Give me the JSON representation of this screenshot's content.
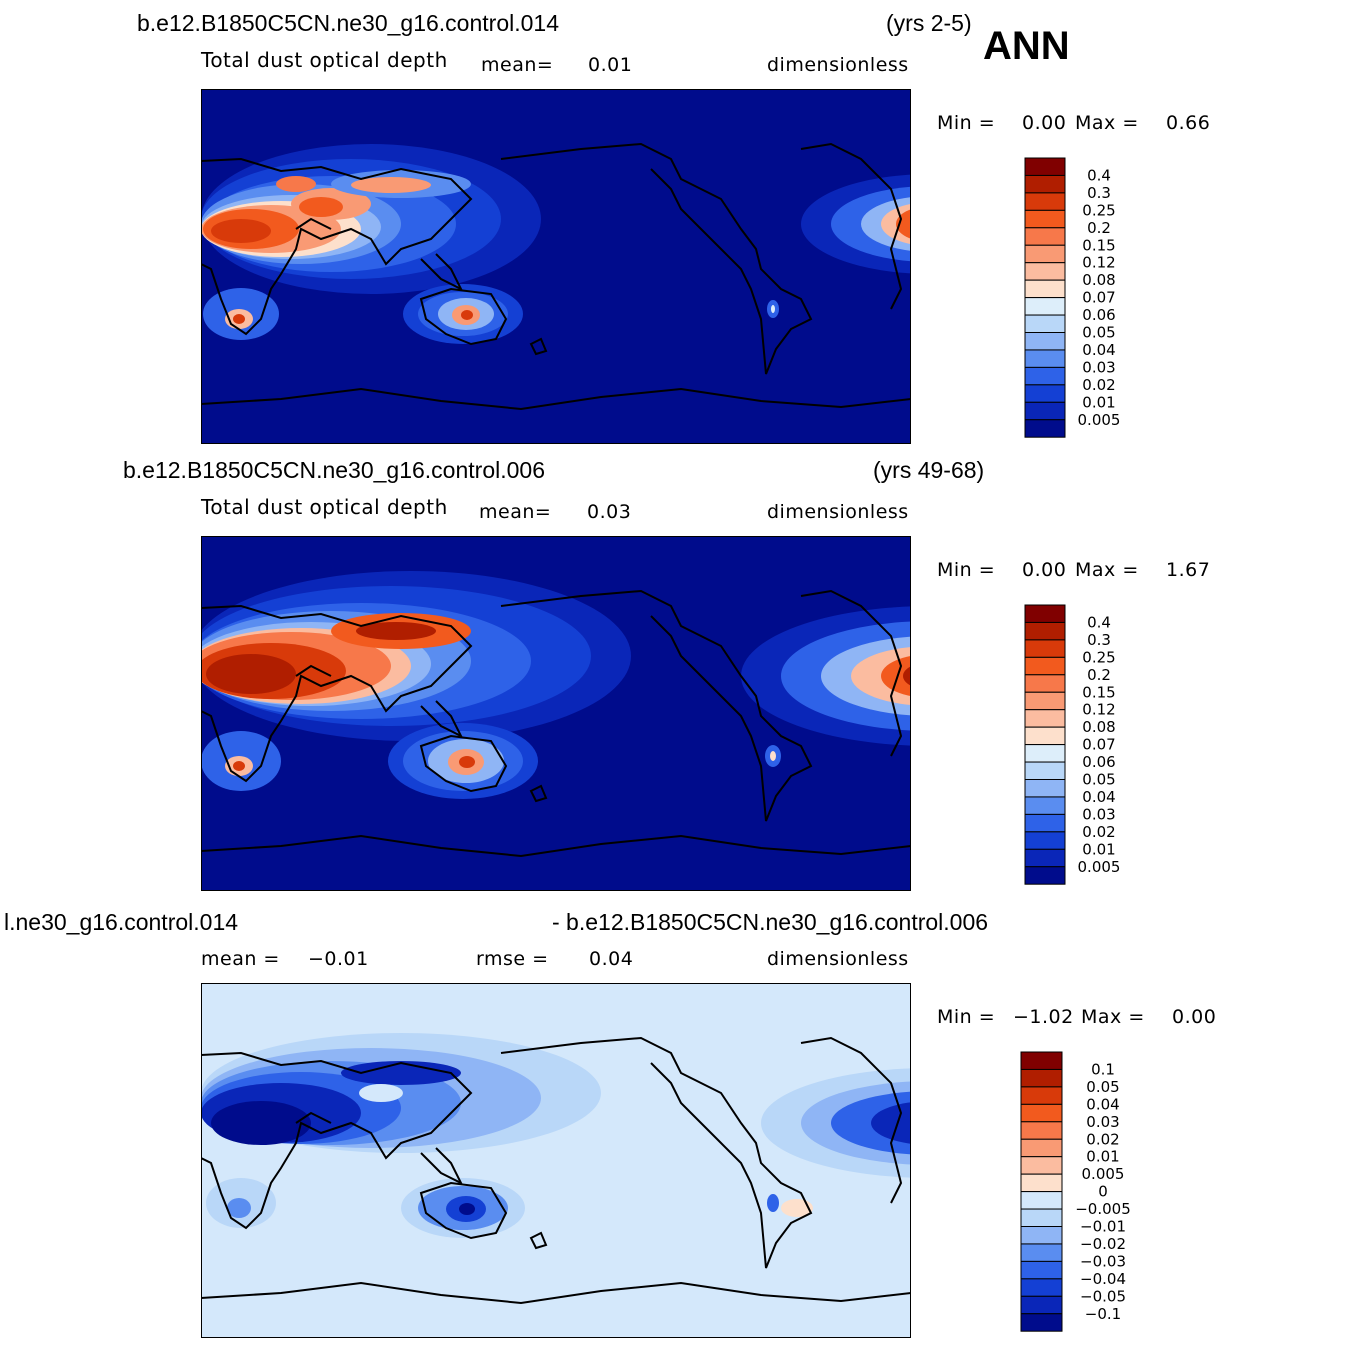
{
  "season": "ANN",
  "panels": [
    {
      "case": "b.e12.B1850C5CN.ne30_g16.control.014",
      "years": "(yrs 2-5)",
      "variable": "Total  dust  optical  depth",
      "stat1_label": "mean=",
      "stat1_value": "0.01",
      "units": "dimensionless",
      "min_label": "Min  =",
      "min_value": "0.00",
      "max_label": "Max  =",
      "max_value": "0.66"
    },
    {
      "case": "b.e12.B1850C5CN.ne30_g16.control.006",
      "years": "(yrs 49-68)",
      "variable": "Total  dust  optical  depth",
      "stat1_label": "mean=",
      "stat1_value": "0.03",
      "units": "dimensionless",
      "min_label": "Min  =",
      "min_value": "0.00",
      "max_label": "Max  =",
      "max_value": "1.67"
    },
    {
      "case_left": "l.ne30_g16.control.014",
      "case_right": "- b.e12.B1850C5CN.ne30_g16.control.006",
      "stat1_label": "mean  =",
      "stat1_value": "−0.01",
      "stat2_label": "rmse  =",
      "stat2_value": "0.04",
      "units": "dimensionless",
      "min_label": "Min  =",
      "min_value": "−1.02",
      "max_label": "Max  =",
      "max_value": "0.00"
    }
  ],
  "colorbar_abs": {
    "labels": [
      "0.4",
      "0.3",
      "0.25",
      "0.2",
      "0.15",
      "0.12",
      "0.08",
      "0.07",
      "0.06",
      "0.05",
      "0.04",
      "0.03",
      "0.02",
      "0.01",
      "0.005"
    ],
    "colors": [
      "#800000",
      "#b01e00",
      "#d83a0a",
      "#f25a1e",
      "#f7784a",
      "#f99a74",
      "#fbbca0",
      "#fde0cc",
      "#ddeefa",
      "#b9d7f8",
      "#8fb5f5",
      "#5a8df0",
      "#2e62e8",
      "#1440d4",
      "#0a26b8",
      "#000c8c"
    ]
  },
  "colorbar_diff": {
    "labels": [
      "0.1",
      "0.05",
      "0.04",
      "0.03",
      "0.02",
      "0.01",
      "0.005",
      "0",
      "−0.005",
      "−0.01",
      "−0.02",
      "−0.03",
      "−0.04",
      "−0.05",
      "−0.1"
    ],
    "colors": [
      "#800000",
      "#b01e00",
      "#d83a0a",
      "#f25a1e",
      "#f7784a",
      "#f99a74",
      "#fbbca0",
      "#fde0cc",
      "#d4e8fb",
      "#b9d7f8",
      "#8fb5f5",
      "#5a8df0",
      "#2e62e8",
      "#1440d4",
      "#0a26b8",
      "#000c8c"
    ]
  }
}
